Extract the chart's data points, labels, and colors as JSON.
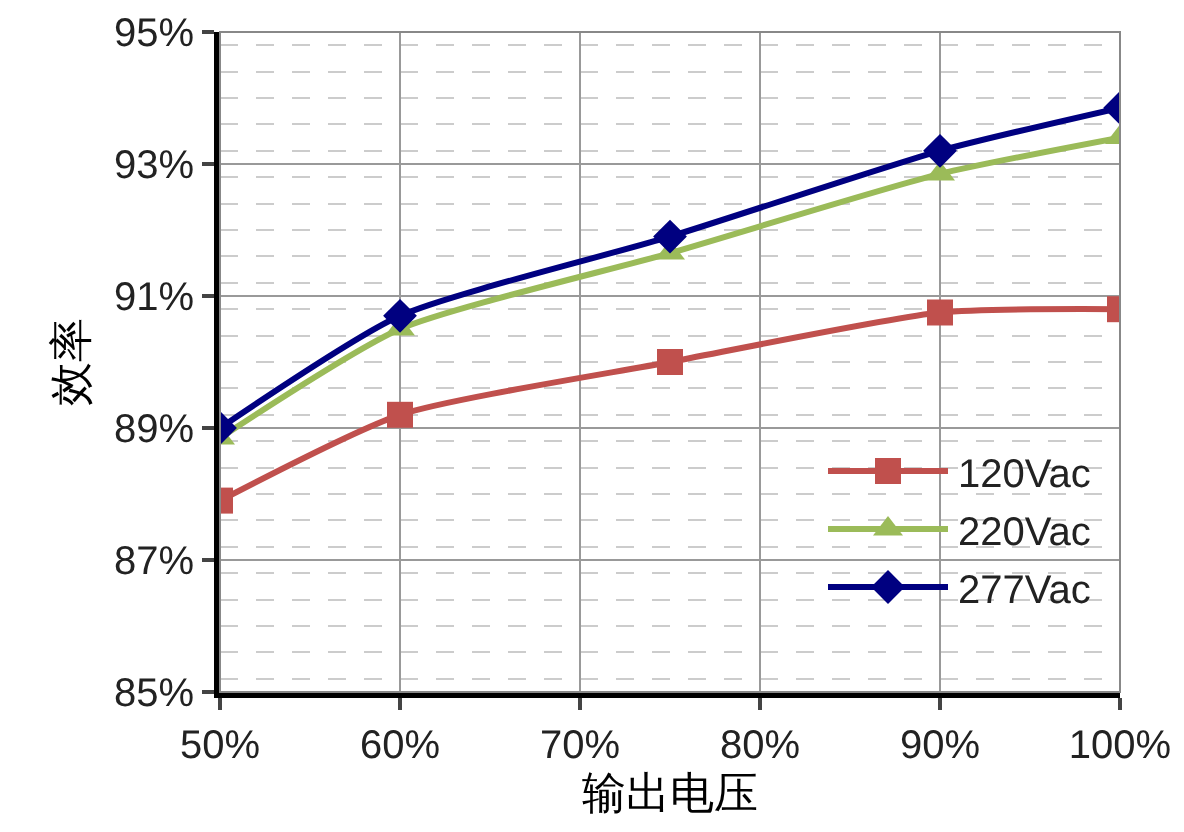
{
  "chart_data": {
    "type": "line",
    "xlabel": "输出电压",
    "ylabel": "效率",
    "x": [
      50,
      60,
      75,
      90,
      100
    ],
    "series": [
      {
        "name": "120Vac",
        "color": "#c0504d",
        "marker": "square",
        "values": [
          87.9,
          89.2,
          90.0,
          90.75,
          90.8
        ]
      },
      {
        "name": "220Vac",
        "color": "#9bbb59",
        "marker": "triangle",
        "values": [
          88.85,
          90.5,
          91.65,
          92.85,
          93.4
        ]
      },
      {
        "name": "277Vac",
        "color": "#000080",
        "marker": "diamond",
        "values": [
          89.0,
          90.7,
          91.9,
          93.2,
          93.85
        ]
      }
    ],
    "xlim": [
      50,
      100
    ],
    "xticks": [
      {
        "value": 50,
        "label": "50%"
      },
      {
        "value": 60,
        "label": "60%"
      },
      {
        "value": 70,
        "label": "70%"
      },
      {
        "value": 80,
        "label": "80%"
      },
      {
        "value": 90,
        "label": "90%"
      },
      {
        "value": 100,
        "label": "100%"
      }
    ],
    "ylim": [
      85,
      95
    ],
    "yticks": [
      {
        "value": 85,
        "label": "85%"
      },
      {
        "value": 87,
        "label": "87%"
      },
      {
        "value": 89,
        "label": "89%"
      },
      {
        "value": 91,
        "label": "91%"
      },
      {
        "value": 93,
        "label": "93%"
      },
      {
        "value": 95,
        "label": "95%"
      }
    ],
    "grid": true,
    "legend": "bottom right",
    "line_style": "solid"
  }
}
